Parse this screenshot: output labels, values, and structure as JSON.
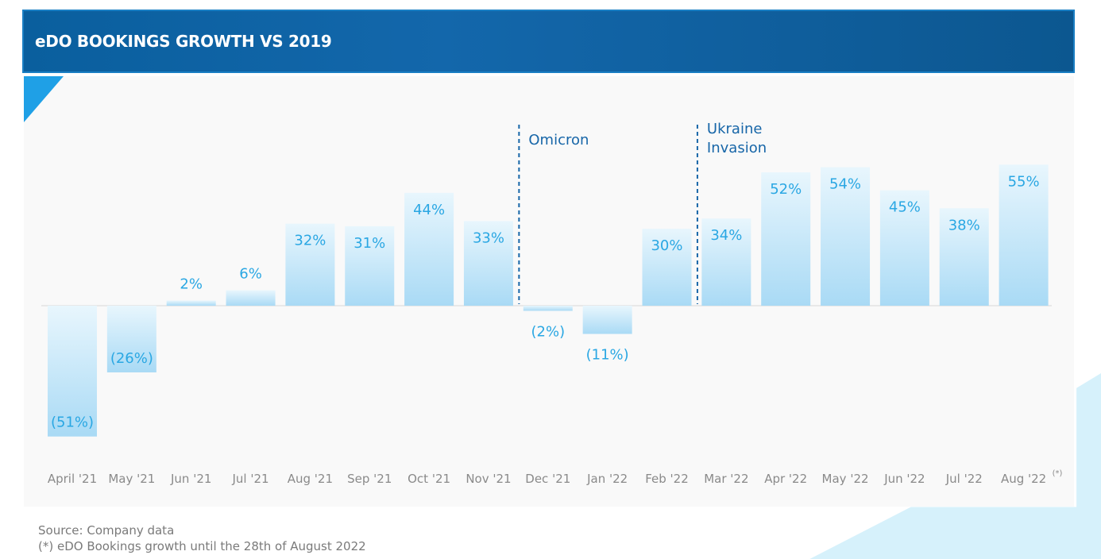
{
  "header": {
    "title": "eDO BOOKINGS GROWTH VS 2019"
  },
  "footer": {
    "source": "Source: Company data",
    "note": "(*) eDO Bookings growth until the 28th of August 2022"
  },
  "colors": {
    "header": "#0a5f9e",
    "bar_top": "#e8f6fd",
    "bar_bottom": "#a9daf5",
    "label": "#2aa7e3",
    "axis_text": "#8a8a8a",
    "event_line": "#1766a8",
    "event_text": "#1766a8"
  },
  "chart_data": {
    "type": "bar",
    "title": "eDO BOOKINGS GROWTH VS 2019",
    "xlabel": "",
    "ylabel": "",
    "categories": [
      "April '21",
      "May '21",
      "Jun '21",
      "Jul '21",
      "Aug '21",
      "Sep '21",
      "Oct '21",
      "Nov '21",
      "Dec '21",
      "Jan '22",
      "Feb '22",
      "Mar '22",
      "Apr '22",
      "May '22",
      "Jun '22",
      "Jul '22",
      "Aug '22"
    ],
    "category_note": {
      "index": 16,
      "text": "(*)"
    },
    "values": [
      -51,
      -26,
      2,
      6,
      32,
      31,
      44,
      33,
      -2,
      -11,
      30,
      34,
      52,
      54,
      45,
      38,
      55
    ],
    "value_labels": [
      "(51%)",
      "(26%)",
      "2%",
      "6%",
      "32%",
      "31%",
      "44%",
      "33%",
      "(2%)",
      "(11%)",
      "30%",
      "34%",
      "52%",
      "54%",
      "45%",
      "38%",
      "55%"
    ],
    "annotations": [
      {
        "after_index": 7,
        "lines": [
          "Omicron"
        ]
      },
      {
        "after_index": 10,
        "lines": [
          "Ukraine",
          "Invasion"
        ]
      }
    ],
    "grid": false,
    "legend": "none"
  }
}
